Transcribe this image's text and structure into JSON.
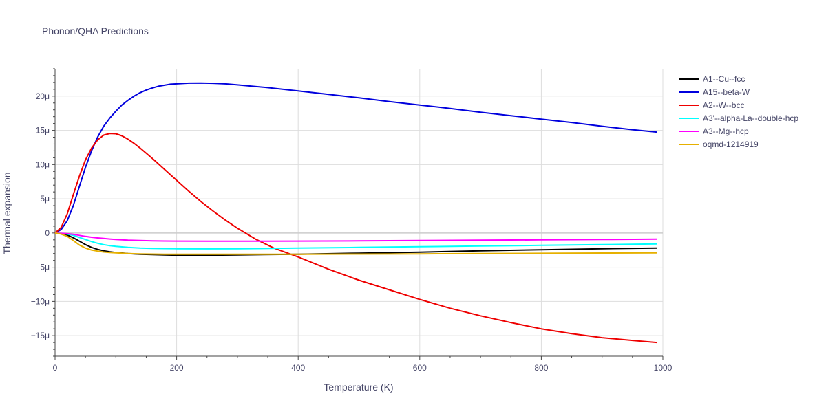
{
  "chart_data": {
    "type": "line",
    "title": "Phonon/QHA Predictions",
    "xlabel": "Temperature (K)",
    "ylabel": "Thermal expansion",
    "xlim": [
      0,
      1000
    ],
    "ylim": [
      -18,
      24
    ],
    "x_ticks": [
      0,
      200,
      400,
      600,
      800,
      1000
    ],
    "x_tick_labels": [
      "0",
      "200",
      "400",
      "600",
      "800",
      "1000"
    ],
    "y_ticks": [
      -15,
      -10,
      -5,
      0,
      5,
      10,
      15,
      20
    ],
    "y_tick_labels": [
      "−15μ",
      "−10μ",
      "−5μ",
      "0",
      "5μ",
      "10μ",
      "15μ",
      "20μ"
    ],
    "grid": true,
    "legend_position": "top-right",
    "series": [
      {
        "name": "A1--Cu--fcc",
        "color": "#000000",
        "x": [
          0,
          10,
          20,
          30,
          40,
          50,
          60,
          70,
          80,
          90,
          100,
          120,
          140,
          160,
          180,
          200,
          250,
          300,
          400,
          500,
          600,
          700,
          800,
          900,
          990
        ],
        "y": [
          0,
          -0.1,
          -0.3,
          -0.7,
          -1.2,
          -1.7,
          -2.1,
          -2.4,
          -2.6,
          -2.75,
          -2.85,
          -3.0,
          -3.1,
          -3.15,
          -3.2,
          -3.25,
          -3.25,
          -3.2,
          -3.1,
          -2.95,
          -2.8,
          -2.6,
          -2.45,
          -2.3,
          -2.2
        ]
      },
      {
        "name": "A15--beta-W",
        "color": "#0000dd",
        "x": [
          0,
          10,
          20,
          30,
          40,
          50,
          60,
          70,
          80,
          90,
          100,
          110,
          120,
          130,
          140,
          150,
          160,
          170,
          180,
          190,
          200,
          220,
          240,
          260,
          280,
          300,
          350,
          400,
          450,
          500,
          550,
          600,
          650,
          700,
          750,
          800,
          850,
          900,
          950,
          990
        ],
        "y": [
          0,
          0.5,
          1.8,
          4.0,
          6.8,
          9.6,
          12.0,
          14.0,
          15.6,
          16.8,
          17.8,
          18.7,
          19.4,
          20.0,
          20.5,
          20.9,
          21.2,
          21.45,
          21.6,
          21.75,
          21.8,
          21.9,
          21.92,
          21.88,
          21.8,
          21.65,
          21.25,
          20.75,
          20.25,
          19.75,
          19.2,
          18.7,
          18.2,
          17.65,
          17.15,
          16.65,
          16.15,
          15.6,
          15.1,
          14.75
        ]
      },
      {
        "name": "A2--W--bcc",
        "color": "#ee0000",
        "x": [
          0,
          10,
          20,
          30,
          40,
          50,
          60,
          70,
          80,
          90,
          100,
          110,
          120,
          130,
          140,
          160,
          180,
          200,
          220,
          240,
          260,
          280,
          300,
          330,
          360,
          400,
          450,
          500,
          550,
          600,
          650,
          700,
          750,
          800,
          850,
          900,
          950,
          990
        ],
        "y": [
          0,
          0.8,
          2.8,
          5.6,
          8.3,
          10.7,
          12.4,
          13.6,
          14.3,
          14.55,
          14.5,
          14.2,
          13.7,
          13.1,
          12.4,
          10.9,
          9.3,
          7.7,
          6.1,
          4.6,
          3.2,
          1.9,
          0.7,
          -0.9,
          -2.2,
          -3.5,
          -5.3,
          -6.9,
          -8.3,
          -9.7,
          -11.0,
          -12.1,
          -13.1,
          -14.0,
          -14.7,
          -15.3,
          -15.7,
          -16.0
        ]
      },
      {
        "name": "A3'--alpha-La--double-hcp",
        "color": "#00ffff",
        "x": [
          0,
          10,
          20,
          30,
          40,
          50,
          60,
          70,
          80,
          90,
          100,
          120,
          140,
          160,
          180,
          200,
          250,
          300,
          400,
          500,
          600,
          700,
          800,
          900,
          990
        ],
        "y": [
          0,
          -0.05,
          -0.15,
          -0.35,
          -0.65,
          -0.95,
          -1.25,
          -1.5,
          -1.7,
          -1.85,
          -1.95,
          -2.1,
          -2.2,
          -2.25,
          -2.28,
          -2.3,
          -2.32,
          -2.3,
          -2.2,
          -2.1,
          -2.0,
          -1.9,
          -1.8,
          -1.7,
          -1.6
        ]
      },
      {
        "name": "A3--Mg--hcp",
        "color": "#ff00ff",
        "x": [
          0,
          10,
          20,
          30,
          40,
          50,
          60,
          70,
          80,
          90,
          100,
          120,
          140,
          160,
          180,
          200,
          250,
          300,
          400,
          500,
          600,
          700,
          800,
          900,
          990
        ],
        "y": [
          0,
          -0.05,
          -0.1,
          -0.2,
          -0.35,
          -0.5,
          -0.62,
          -0.72,
          -0.8,
          -0.88,
          -0.95,
          -1.05,
          -1.1,
          -1.15,
          -1.17,
          -1.18,
          -1.2,
          -1.2,
          -1.18,
          -1.15,
          -1.1,
          -1.05,
          -1.0,
          -0.95,
          -0.9
        ]
      },
      {
        "name": "oqmd-1214919",
        "color": "#e6b000",
        "x": [
          0,
          10,
          20,
          30,
          40,
          50,
          60,
          70,
          80,
          90,
          100,
          120,
          140,
          160,
          180,
          200,
          250,
          300,
          400,
          500,
          600,
          700,
          800,
          900,
          990
        ],
        "y": [
          0,
          -0.15,
          -0.5,
          -1.1,
          -1.75,
          -2.2,
          -2.5,
          -2.65,
          -2.78,
          -2.85,
          -2.9,
          -3.0,
          -3.05,
          -3.08,
          -3.1,
          -3.1,
          -3.1,
          -3.1,
          -3.1,
          -3.08,
          -3.05,
          -3.0,
          -2.97,
          -2.93,
          -2.9
        ]
      }
    ]
  }
}
